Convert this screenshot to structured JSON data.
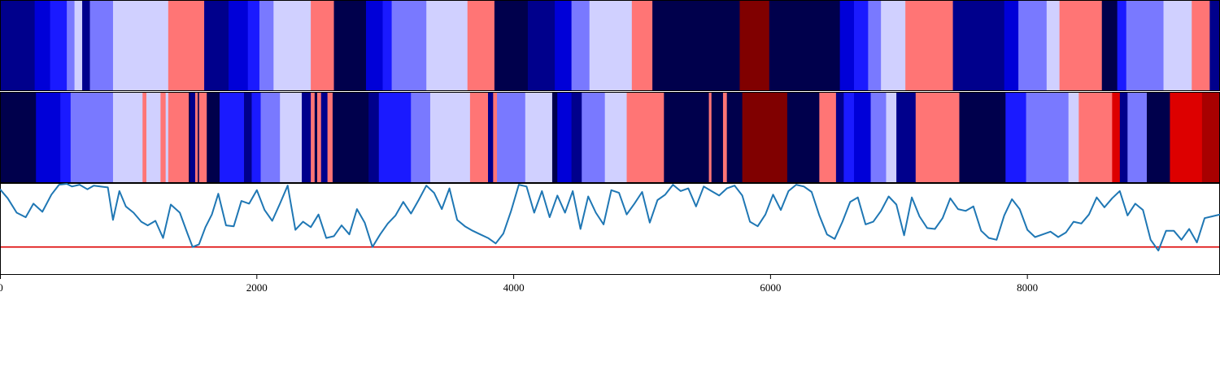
{
  "colors": {
    "palette": {
      "0": "#00004c",
      "1": "#00008c",
      "2": "#0000d8",
      "3": "#1a1aff",
      "4": "#7979ff",
      "5": "#d0d0ff",
      "6": "#ff7575",
      "7": "#800000",
      "8": "#dd0000",
      "9": "#a80000"
    },
    "line": "#1f77b4",
    "threshold": "#dd0000",
    "frame": "#000000"
  },
  "chart_data": {
    "type": "line",
    "x_range": [
      0,
      9500
    ],
    "x_ticks": [
      0,
      2000,
      4000,
      6000,
      8000
    ],
    "x_tick_labels": [
      "0",
      "2000",
      "4000",
      "6000",
      "8000"
    ],
    "y_range": [
      0,
      1
    ],
    "threshold": 0.3,
    "strip_top": [
      [
        0,
        110,
        1
      ],
      [
        110,
        270,
        1
      ],
      [
        270,
        390,
        2
      ],
      [
        390,
        520,
        3
      ],
      [
        520,
        580,
        4
      ],
      [
        580,
        640,
        5
      ],
      [
        640,
        700,
        1
      ],
      [
        700,
        880,
        4
      ],
      [
        880,
        1310,
        5
      ],
      [
        1310,
        1590,
        6
      ],
      [
        1590,
        1780,
        1
      ],
      [
        1780,
        1930,
        2
      ],
      [
        1930,
        2020,
        3
      ],
      [
        2020,
        2130,
        4
      ],
      [
        2130,
        2420,
        5
      ],
      [
        2420,
        2600,
        6
      ],
      [
        2600,
        2850,
        0
      ],
      [
        2850,
        2980,
        2
      ],
      [
        2980,
        3050,
        3
      ],
      [
        3050,
        3320,
        4
      ],
      [
        3320,
        3640,
        5
      ],
      [
        3640,
        3850,
        6
      ],
      [
        3850,
        4110,
        0
      ],
      [
        4110,
        4320,
        1
      ],
      [
        4320,
        4450,
        2
      ],
      [
        4450,
        4590,
        4
      ],
      [
        4590,
        4920,
        5
      ],
      [
        4920,
        5080,
        6
      ],
      [
        5080,
        5760,
        0
      ],
      [
        5760,
        5990,
        7
      ],
      [
        5990,
        6540,
        0
      ],
      [
        6540,
        6650,
        2
      ],
      [
        6650,
        6760,
        3
      ],
      [
        6760,
        6860,
        4
      ],
      [
        6860,
        7050,
        5
      ],
      [
        7050,
        7420,
        6
      ],
      [
        7420,
        7820,
        1
      ],
      [
        7820,
        7930,
        2
      ],
      [
        7930,
        8150,
        4
      ],
      [
        8150,
        8250,
        5
      ],
      [
        8250,
        8580,
        6
      ],
      [
        8580,
        8700,
        0
      ],
      [
        8700,
        8770,
        3
      ],
      [
        8770,
        9060,
        4
      ],
      [
        9060,
        9280,
        5
      ],
      [
        9280,
        9420,
        6
      ],
      [
        9420,
        9500,
        1
      ]
    ],
    "strip_bottom": [
      [
        0,
        280,
        0
      ],
      [
        280,
        470,
        2
      ],
      [
        470,
        550,
        3
      ],
      [
        550,
        880,
        4
      ],
      [
        880,
        1110,
        5
      ],
      [
        1110,
        1140,
        6
      ],
      [
        1140,
        1250,
        5
      ],
      [
        1250,
        1290,
        6
      ],
      [
        1290,
        1310,
        5
      ],
      [
        1310,
        1470,
        6
      ],
      [
        1470,
        1480,
        0
      ],
      [
        1480,
        1520,
        1
      ],
      [
        1520,
        1540,
        6
      ],
      [
        1540,
        1550,
        0
      ],
      [
        1550,
        1610,
        6
      ],
      [
        1610,
        1710,
        0
      ],
      [
        1710,
        1900,
        3
      ],
      [
        1900,
        1960,
        1
      ],
      [
        1960,
        2030,
        3
      ],
      [
        2030,
        2180,
        4
      ],
      [
        2180,
        2220,
        5
      ],
      [
        2220,
        2350,
        5
      ],
      [
        2350,
        2420,
        1
      ],
      [
        2420,
        2450,
        6
      ],
      [
        2450,
        2470,
        0
      ],
      [
        2470,
        2500,
        6
      ],
      [
        2500,
        2550,
        1
      ],
      [
        2550,
        2590,
        6
      ],
      [
        2590,
        2870,
        0
      ],
      [
        2870,
        2950,
        1
      ],
      [
        2950,
        3200,
        3
      ],
      [
        3200,
        3350,
        4
      ],
      [
        3350,
        3660,
        5
      ],
      [
        3660,
        3800,
        6
      ],
      [
        3800,
        3840,
        1
      ],
      [
        3840,
        3870,
        6
      ],
      [
        3870,
        4090,
        4
      ],
      [
        4090,
        4300,
        5
      ],
      [
        4300,
        4340,
        0
      ],
      [
        4340,
        4450,
        2
      ],
      [
        4450,
        4530,
        1
      ],
      [
        4530,
        4710,
        4
      ],
      [
        4710,
        4880,
        5
      ],
      [
        4880,
        5170,
        6
      ],
      [
        5170,
        5520,
        0
      ],
      [
        5520,
        5540,
        6
      ],
      [
        5540,
        5630,
        0
      ],
      [
        5630,
        5660,
        6
      ],
      [
        5660,
        5780,
        0
      ],
      [
        5780,
        6130,
        7
      ],
      [
        6130,
        6380,
        0
      ],
      [
        6380,
        6510,
        6
      ],
      [
        6510,
        6570,
        1
      ],
      [
        6570,
        6650,
        3
      ],
      [
        6650,
        6780,
        2
      ],
      [
        6780,
        6900,
        4
      ],
      [
        6900,
        6980,
        5
      ],
      [
        6980,
        7130,
        1
      ],
      [
        7130,
        7470,
        6
      ],
      [
        7470,
        7830,
        0
      ],
      [
        7830,
        7990,
        3
      ],
      [
        7990,
        8320,
        4
      ],
      [
        8320,
        8400,
        5
      ],
      [
        8400,
        8660,
        6
      ],
      [
        8660,
        8720,
        8
      ],
      [
        8720,
        8780,
        1
      ],
      [
        8780,
        8930,
        4
      ],
      [
        8930,
        9110,
        0
      ],
      [
        9110,
        9360,
        8
      ],
      [
        9360,
        9500,
        9
      ]
    ],
    "series": [
      {
        "x": [
          0,
          60,
          130,
          200,
          260,
          330,
          400,
          460,
          520,
          560,
          620,
          680,
          730,
          780,
          840,
          880,
          930,
          980,
          1040,
          1100,
          1150,
          1210,
          1270,
          1330,
          1400,
          1460,
          1500,
          1550,
          1600,
          1650,
          1700,
          1760,
          1820,
          1880,
          1940,
          2000,
          2060,
          2120,
          2180,
          2240,
          2300,
          2360,
          2420,
          2480,
          2540,
          2600,
          2660,
          2720,
          2780,
          2840,
          2900,
          2960,
          3020,
          3080,
          3140,
          3200,
          3260,
          3320,
          3380,
          3440,
          3500,
          3560,
          3620,
          3680,
          3740,
          3800,
          3860,
          3920,
          3980,
          4040,
          4100,
          4160,
          4220,
          4280,
          4340,
          4400,
          4460,
          4520,
          4580,
          4640,
          4700,
          4760,
          4820,
          4880,
          4940,
          5000,
          5060,
          5120,
          5180,
          5240,
          5300,
          5360,
          5420,
          5480,
          5540,
          5600,
          5660,
          5720,
          5780,
          5840,
          5900,
          5960,
          6020,
          6080,
          6140,
          6200,
          6260,
          6320,
          6380,
          6440,
          6500,
          6560,
          6620,
          6680,
          6740,
          6800,
          6860,
          6920,
          6980,
          7040,
          7100,
          7160,
          7220,
          7280,
          7340,
          7400,
          7460,
          7520,
          7580,
          7640,
          7700,
          7760,
          7820,
          7880,
          7940,
          8000,
          8060,
          8120,
          8180,
          8240,
          8300,
          8360,
          8420,
          8480,
          8540,
          8600,
          8660,
          8720,
          8780,
          8840,
          8900,
          8960,
          9020,
          9080,
          9140,
          9200,
          9260,
          9320,
          9380,
          9440,
          9500
        ],
        "y": [
          0.94,
          0.84,
          0.68,
          0.63,
          0.78,
          0.69,
          0.88,
          0.99,
          1.0,
          0.97,
          0.99,
          0.94,
          0.98,
          0.97,
          0.96,
          0.6,
          0.92,
          0.75,
          0.68,
          0.58,
          0.54,
          0.59,
          0.4,
          0.77,
          0.68,
          0.45,
          0.3,
          0.33,
          0.52,
          0.66,
          0.89,
          0.54,
          0.53,
          0.81,
          0.78,
          0.93,
          0.71,
          0.59,
          0.78,
          0.98,
          0.49,
          0.58,
          0.52,
          0.66,
          0.4,
          0.42,
          0.54,
          0.44,
          0.72,
          0.57,
          0.3,
          0.44,
          0.56,
          0.65,
          0.8,
          0.67,
          0.82,
          0.98,
          0.9,
          0.72,
          0.95,
          0.6,
          0.53,
          0.48,
          0.44,
          0.4,
          0.34,
          0.45,
          0.7,
          0.99,
          0.97,
          0.68,
          0.92,
          0.63,
          0.87,
          0.68,
          0.92,
          0.5,
          0.86,
          0.68,
          0.55,
          0.93,
          0.9,
          0.66,
          0.78,
          0.91,
          0.57,
          0.82,
          0.88,
          0.99,
          0.92,
          0.95,
          0.75,
          0.97,
          0.92,
          0.87,
          0.95,
          0.98,
          0.87,
          0.58,
          0.53,
          0.66,
          0.88,
          0.71,
          0.92,
          0.99,
          0.97,
          0.91,
          0.65,
          0.44,
          0.39,
          0.58,
          0.8,
          0.85,
          0.55,
          0.58,
          0.7,
          0.86,
          0.77,
          0.43,
          0.85,
          0.64,
          0.51,
          0.5,
          0.62,
          0.84,
          0.72,
          0.7,
          0.75,
          0.48,
          0.4,
          0.38,
          0.65,
          0.83,
          0.72,
          0.49,
          0.41,
          0.44,
          0.47,
          0.41,
          0.46,
          0.58,
          0.56,
          0.66,
          0.85,
          0.74,
          0.84,
          0.92,
          0.65,
          0.78,
          0.71,
          0.38,
          0.26,
          0.48,
          0.48,
          0.38,
          0.5,
          0.35,
          0.62,
          0.64,
          0.66
        ]
      }
    ]
  }
}
